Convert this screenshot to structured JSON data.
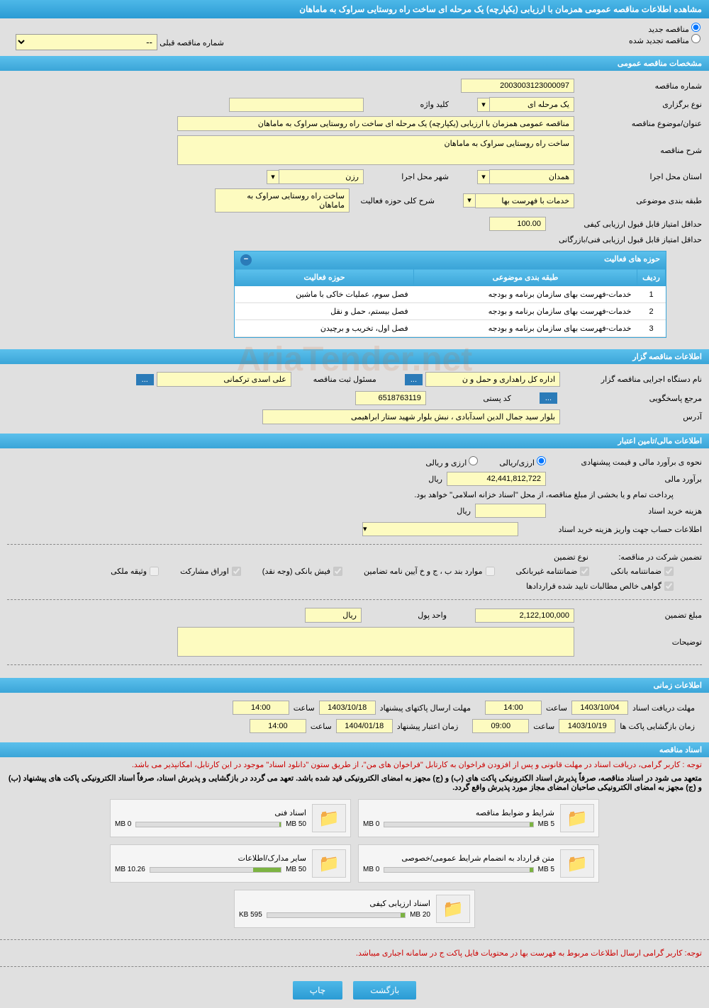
{
  "header": {
    "title": "مشاهده اطلاعات مناقصه عمومی همزمان با ارزیابی (یکپارچه) یک مرحله ای ساخت راه روستایی سراوک به ماماهان"
  },
  "radios": {
    "new_tender": "مناقصه جدید",
    "renewed_tender": "مناقصه تجدید شده",
    "prev_tender_label": "شماره مناقصه قبلی",
    "prev_tender_value": "--"
  },
  "sections": {
    "general": "مشخصات مناقصه عمومی",
    "organizer": "اطلاعات مناقصه گزار",
    "financial": "اطلاعات مالی/تامین اعتبار",
    "timing": "اطلاعات زمانی",
    "documents": "اسناد مناقصه"
  },
  "general": {
    "tender_no_label": "شماره مناقصه",
    "tender_no": "2003003123000097",
    "holding_type_label": "نوع برگزاری",
    "holding_type": "یک مرحله ای",
    "keyword_label": "کلید واژه",
    "keyword": "",
    "title_label": "عنوان/موضوع مناقصه",
    "title": "مناقصه عمومی همزمان با ارزیابی (یکپارچه) یک مرحله ای ساخت راه روستایی سراوک به ماماهان",
    "desc_label": "شرح مناقصه",
    "desc": "ساخت راه روستایی سراوک به ماماهان",
    "province_label": "استان محل اجرا",
    "province": "همدان",
    "city_label": "شهر محل اجرا",
    "city": "رزن",
    "category_label": "طبقه بندی موضوعی",
    "category": "خدمات با فهرست بها",
    "activity_desc_label": "شرح کلی حوزه فعالیت",
    "activity_desc": "ساخت راه روستایی سراوک به ماماهان",
    "min_quality_score_label": "حداقل امتیاز قابل قبول ارزیابی کیفی",
    "min_quality_score": "100.00",
    "min_tech_score_label": "حداقل امتیاز قابل قبول ارزیابی فنی/بازرگانی",
    "min_tech_score": ""
  },
  "activities_table": {
    "title": "حوزه های فعالیت",
    "col_row": "ردیف",
    "col_category": "طبقه بندی موضوعی",
    "col_activity": "حوزه فعالیت",
    "rows": [
      {
        "n": "1",
        "cat": "خدمات-فهرست بهای سازمان برنامه و بودجه",
        "act": "فصل سوم، عملیات خاکی با ماشین"
      },
      {
        "n": "2",
        "cat": "خدمات-فهرست بهای سازمان برنامه و بودجه",
        "act": "فصل بیستم، حمل و نقل"
      },
      {
        "n": "3",
        "cat": "خدمات-فهرست بهای سازمان برنامه و بودجه",
        "act": "فصل اول، تخریب و برچیدن"
      }
    ]
  },
  "organizer": {
    "exec_org_label": "نام دستگاه اجرایی مناقصه گزار",
    "exec_org": "اداره کل راهداری و حمل و ن",
    "officer_label": "مسئول ثبت مناقصه",
    "officer": "علی اسدی ترکمانی",
    "responder_label": "مرجع پاسخگویی",
    "responder": "",
    "postal_label": "کد پستی",
    "postal": "6518763119",
    "address_label": "آدرس",
    "address": "بلوار سید جمال الدین اسدآبادی ، نبش بلوار شهید ستار ابراهیمی"
  },
  "financial": {
    "estimate_mode_label": "نحوه ی برآورد مالی و قیمت پیشنهادی",
    "mode_fx": "ارزی/ریالی",
    "mode_rial": "ارزی و ریالی",
    "estimate_label": "برآورد مالی",
    "estimate": "42,441,812,722",
    "currency": "ریال",
    "payment_note": "پرداخت تمام و یا بخشی از مبلغ مناقصه، از محل \"اسناد خزانه اسلامی\" خواهد بود.",
    "doc_fee_label": "هزینه خرید اسناد",
    "doc_fee": "",
    "deposit_account_label": "اطلاعات حساب جهت واریز هزینه خرید اسناد",
    "guarantee_label": "تضمین شرکت در مناقصه:",
    "guarantee_type_label": "نوع تضمین",
    "cb_bank_guarantee": "ضمانتنامه بانکی",
    "cb_nonbank_guarantee": "ضمانتنامه غیربانکی",
    "cb_bond_items": "موارد بند ب ، ج و خ آیین نامه تضامین",
    "cb_bank_receipt": "فیش بانکی (وجه نقد)",
    "cb_securities": "اوراق مشارکت",
    "cb_property": "وثیقه ملکی",
    "cb_approved_contracts": "گواهی خالص مطالبات تایید شده قراردادها",
    "guarantee_amount_label": "مبلغ تضمین",
    "guarantee_amount": "2,122,100,000",
    "money_unit_label": "واحد پول",
    "money_unit": "ریال",
    "notes_label": "توضیحات",
    "notes": ""
  },
  "timing": {
    "doc_receive_label": "مهلت دریافت اسناد",
    "doc_receive_date": "1403/10/04",
    "doc_receive_time": "14:00",
    "envelope_send_label": "مهلت ارسال پاکتهای پیشنهاد",
    "envelope_send_date": "1403/10/18",
    "envelope_send_time": "14:00",
    "opening_label": "زمان بازگشایی پاکت ها",
    "opening_date": "1403/10/19",
    "opening_time": "09:00",
    "validity_label": "زمان اعتبار پیشنهاد",
    "validity_date": "1404/01/18",
    "validity_time": "14:00",
    "time_word": "ساعت"
  },
  "docs": {
    "note1": "توجه : کاربر گرامی، دریافت اسناد در مهلت قانونی و پس از افزودن فراخوان به کارتابل \"فراخوان های من\"، از طریق ستون \"دانلود اسناد\" موجود در این کارتابل، امکانپذیر می باشد.",
    "note2": "متعهد می شود در اسناد مناقصه، صرفاً پذیرش اسناد الکترونیکی پاکت های (ب) و (ج) مجهز به امضای الکترونیکی قید شده باشد. تعهد می گردد در بازگشایی و پذیرش اسناد، صرفاً اسناد الکترونیکی پاکت های پیشنهاد (ب) و (ج) مجهز به امضای الکترونیکی صاحبان امضای مجاز مورد پذیرش واقع گردد.",
    "note3": "توجه: کاربر گرامی ارسال اطلاعات مربوط به فهرست بها در محتویات فایل پاکت ج در سامانه اجباری میباشد.",
    "cards": [
      {
        "title": "شرایط و ضوابط مناقصه",
        "used": "0 MB",
        "max": "5 MB",
        "fill": 2
      },
      {
        "title": "اسناد فنی",
        "used": "0 MB",
        "max": "50 MB",
        "fill": 1
      },
      {
        "title": "متن قرارداد به انضمام شرایط عمومی/خصوصی",
        "used": "0 MB",
        "max": "5 MB",
        "fill": 2
      },
      {
        "title": "سایر مدارک/اطلاعات",
        "used": "10.26 MB",
        "max": "50 MB",
        "fill": 21
      },
      {
        "title": "اسناد ارزیابی کیفی",
        "used": "595 KB",
        "max": "20 MB",
        "fill": 3
      }
    ]
  },
  "buttons": {
    "back": "بازگشت",
    "print": "چاپ",
    "more": "..."
  },
  "watermark": "AriaTender.net"
}
